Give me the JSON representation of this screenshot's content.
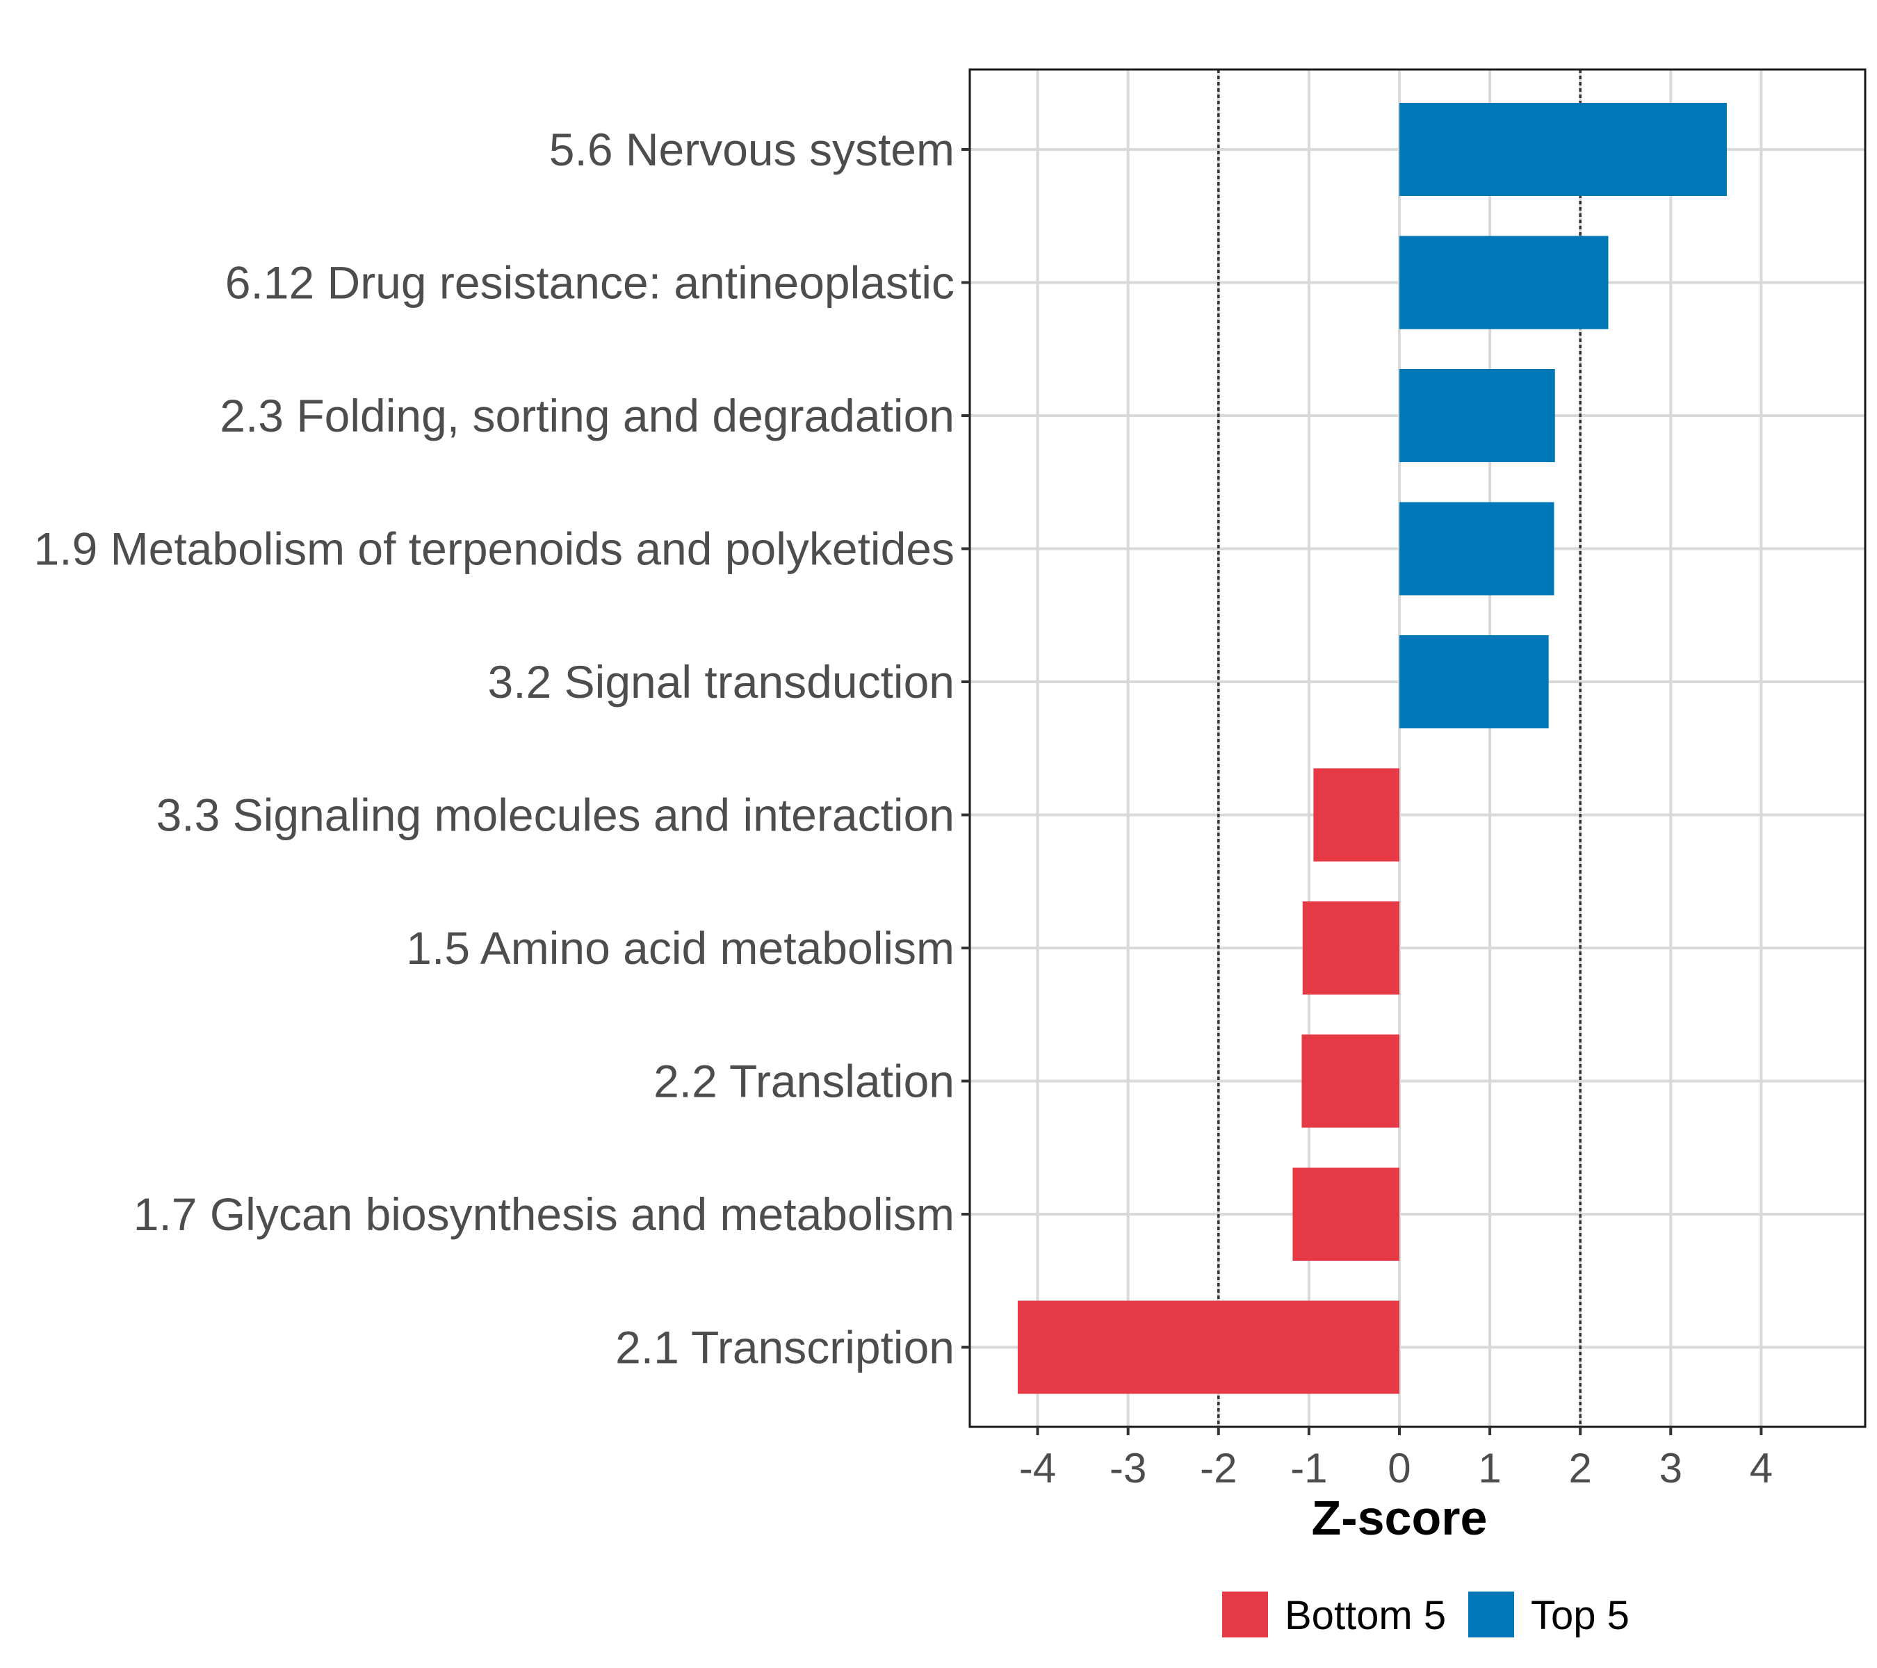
{
  "chart_data": {
    "type": "bar",
    "orientation": "horizontal",
    "xlabel": "Z-score",
    "ylabel": "",
    "xlim": [
      -4.75,
      5.15
    ],
    "xticks": [
      -4,
      -3,
      -2,
      -1,
      0,
      1,
      2,
      3,
      4
    ],
    "reference_lines": [
      -2,
      2
    ],
    "grid": true,
    "categories": [
      "5.6 Nervous system",
      "6.12 Drug resistance: antineoplastic",
      "2.3 Folding, sorting and degradation",
      "1.9 Metabolism of terpenoids and polyketides",
      "3.2 Signal transduction",
      "3.3 Signaling molecules and interaction",
      "1.5 Amino acid metabolism",
      "2.2 Translation",
      "1.7 Glycan biosynthesis and metabolism",
      "2.1 Transcription"
    ],
    "values": [
      3.62,
      2.31,
      1.72,
      1.71,
      1.65,
      -0.95,
      -1.07,
      -1.08,
      -1.18,
      -4.22
    ],
    "groups": [
      "Top 5",
      "Top 5",
      "Top 5",
      "Top 5",
      "Top 5",
      "Bottom 5",
      "Bottom 5",
      "Bottom 5",
      "Bottom 5",
      "Bottom 5"
    ],
    "legend": {
      "position": "bottom",
      "entries": [
        {
          "label": "Bottom 5",
          "color": "#e63946"
        },
        {
          "label": "Top 5",
          "color": "#0077b6"
        }
      ]
    },
    "colors": {
      "Top 5": "#0077b6",
      "Bottom 5": "#e63946"
    }
  }
}
